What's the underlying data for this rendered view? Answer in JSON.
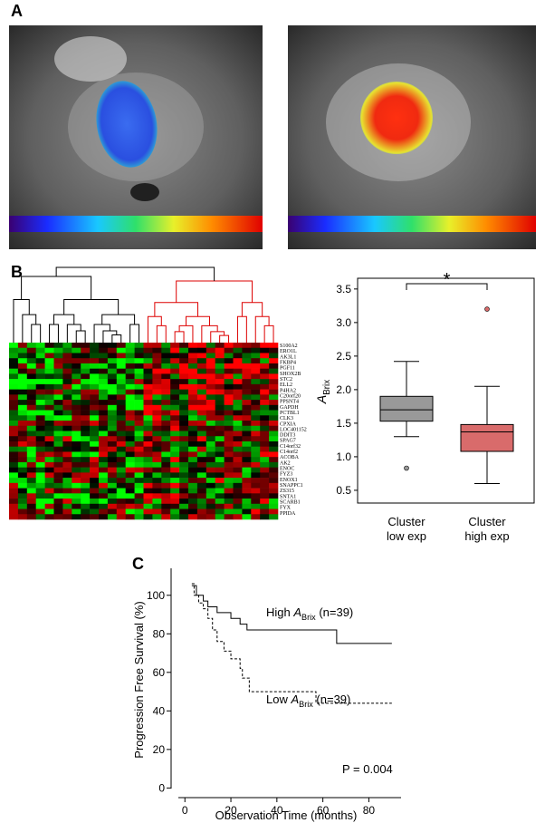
{
  "panel_labels": [
    "A",
    "B",
    "C"
  ],
  "heatmap": {
    "genes": [
      "S100A2",
      "ERO1L",
      "AK3L1",
      "FKBP4",
      "PGF11",
      "SHOX2B",
      "STC2",
      "ELL2",
      "P4HA2",
      "C20orf20",
      "PPSNT4",
      "GAPDH",
      "PCTBL1",
      "CLK3",
      "CPXIA",
      "LOC401152",
      "DDIT3",
      "SPAG7",
      "C14orf32",
      "C14orf2",
      "ACOBA",
      "AK2",
      "ENOC",
      "FYZ3",
      "ENOX1",
      "SNAPPC1",
      "ZS315",
      "SNTA1",
      "SCARB1",
      "FYX",
      "PPIDA"
    ]
  },
  "chart_data": [
    {
      "type": "box",
      "annotation": "*",
      "ylabel": {
        "symbol": "A",
        "subscript": "Brix"
      },
      "categories": [
        [
          "Cluster",
          "low exp"
        ],
        [
          "Cluster",
          "high exp"
        ]
      ],
      "colors": [
        "#999999",
        "#d96b6b"
      ],
      "boxes": [
        {
          "whislo": 1.3,
          "q1": 1.53,
          "med": 1.7,
          "q3": 1.9,
          "whishi": 2.42,
          "fliers": [
            0.83
          ]
        },
        {
          "whislo": 0.6,
          "q1": 1.08,
          "med": 1.37,
          "q3": 1.48,
          "whishi": 2.05,
          "fliers": [
            3.2
          ]
        }
      ],
      "ylim": [
        0.31,
        3.66
      ],
      "yticks": [
        0.5,
        {
          "value": 1.0,
          "label": "1.0"
        },
        1.5,
        {
          "value": 2.0,
          "label": "2.0"
        },
        2.5,
        {
          "value": 3.0,
          "label": "3.0"
        },
        3.5
      ]
    },
    {
      "type": "step",
      "xlabel": "Observation Time (months)",
      "ylabel": "Progression Free Survival (%)",
      "xlim": [
        -6,
        94
      ],
      "ylim": [
        -5,
        114
      ],
      "xticks": [
        0,
        20,
        40,
        60,
        80
      ],
      "yticks": [
        0,
        20,
        40,
        60,
        80,
        100
      ],
      "annotation": "P = 0.004",
      "series": [
        {
          "name": {
            "prefix": "High ",
            "symbol": "A",
            "subscript": "Brix",
            "suffix": " (n=39)"
          },
          "color": "#000000",
          "dashed": false,
          "x": [
            3,
            5,
            8,
            10,
            14,
            20,
            24,
            27,
            65,
            66,
            90
          ],
          "values": [
            105,
            100,
            97,
            94,
            91,
            88,
            85,
            82,
            82,
            75,
            75
          ]
        },
        {
          "name": {
            "prefix": "Low ",
            "symbol": "A",
            "subscript": "Brix",
            "suffix": " (n=39)"
          },
          "color": "#000000",
          "dashed": true,
          "x": [
            3,
            4,
            6,
            8,
            10,
            12,
            14,
            17,
            20,
            24,
            25,
            28,
            55,
            57,
            90
          ],
          "values": [
            106,
            100,
            96,
            93,
            88,
            82,
            76,
            71,
            67,
            62,
            57,
            50,
            50,
            44,
            44
          ]
        }
      ]
    }
  ]
}
